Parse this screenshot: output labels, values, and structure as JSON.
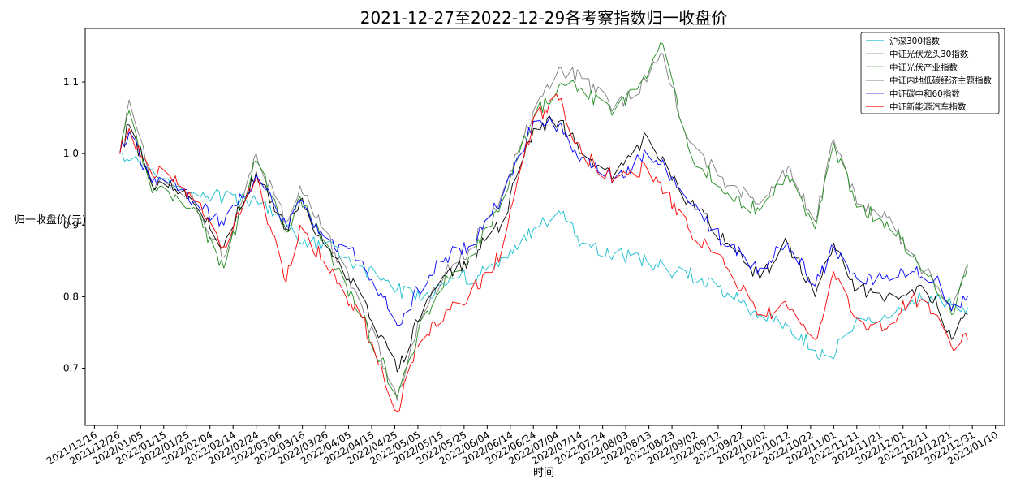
{
  "chart_data": {
    "type": "line",
    "title": "2021-12-27至2022-12-29各考察指数归一收盘价",
    "xlabel": "时间",
    "ylabel": "归一收盘价(元)",
    "x_start": "2021-12-27",
    "x_end": "2022-12-29",
    "xlim": [
      "2021-12-12",
      "2023-01-14"
    ],
    "ylim": [
      0.62,
      1.175
    ],
    "yticks": [
      0.7,
      0.8,
      0.9,
      1.0,
      1.1
    ],
    "ytick_labels": [
      "0.7",
      "0.8",
      "0.9",
      "1.0",
      "1.1"
    ],
    "xtick_labels": [
      "2021/12/16",
      "2021/12/26",
      "2022/01/05",
      "2022/01/15",
      "2022/01/25",
      "2022/02/04",
      "2022/02/14",
      "2022/02/24",
      "2022/03/06",
      "2022/03/16",
      "2022/03/26",
      "2022/04/05",
      "2022/04/15",
      "2022/04/25",
      "2022/05/05",
      "2022/05/15",
      "2022/05/25",
      "2022/06/04",
      "2022/06/14",
      "2022/06/24",
      "2022/07/04",
      "2022/07/14",
      "2022/07/24",
      "2022/08/03",
      "2022/08/13",
      "2022/08/23",
      "2022/09/02",
      "2022/09/12",
      "2022/09/22",
      "2022/10/02",
      "2022/10/12",
      "2022/10/22",
      "2022/11/01",
      "2022/11/11",
      "2022/11/21",
      "2022/12/01",
      "2022/12/11",
      "2022/12/21",
      "2022/12/31",
      "2023/01/10"
    ],
    "grid": false,
    "legend_position": "top-right",
    "series": [
      {
        "name": "沪深300指数",
        "color": "#17becf",
        "x": [
          "2021-12-27",
          "2022-01-05",
          "2022-01-14",
          "2022-01-28",
          "2022-02-10",
          "2022-02-24",
          "2022-03-08",
          "2022-03-15",
          "2022-03-25",
          "2022-04-08",
          "2022-04-20",
          "2022-04-26",
          "2022-05-10",
          "2022-05-20",
          "2022-06-01",
          "2022-06-15",
          "2022-06-24",
          "2022-07-05",
          "2022-07-15",
          "2022-07-29",
          "2022-08-12",
          "2022-08-25",
          "2022-09-05",
          "2022-09-16",
          "2022-09-30",
          "2022-10-12",
          "2022-10-24",
          "2022-10-31",
          "2022-11-11",
          "2022-11-24",
          "2022-12-05",
          "2022-12-15",
          "2022-12-23",
          "2022-12-29"
        ],
        "values": [
          1.0,
          0.985,
          0.965,
          0.945,
          0.94,
          0.935,
          0.91,
          0.875,
          0.875,
          0.845,
          0.825,
          0.81,
          0.8,
          0.825,
          0.83,
          0.86,
          0.895,
          0.92,
          0.875,
          0.86,
          0.85,
          0.835,
          0.825,
          0.805,
          0.775,
          0.76,
          0.725,
          0.715,
          0.77,
          0.77,
          0.795,
          0.795,
          0.79,
          0.785
        ]
      },
      {
        "name": "中证光伏龙头30指数",
        "color": "#808080",
        "x": [
          "2021-12-27",
          "2021-12-31",
          "2022-01-10",
          "2022-01-14",
          "2022-01-28",
          "2022-02-10",
          "2022-02-24",
          "2022-03-09",
          "2022-03-15",
          "2022-03-25",
          "2022-04-11",
          "2022-04-26",
          "2022-05-05",
          "2022-05-17",
          "2022-05-27",
          "2022-06-10",
          "2022-06-24",
          "2022-07-05",
          "2022-07-15",
          "2022-07-29",
          "2022-08-12",
          "2022-08-18",
          "2022-08-31",
          "2022-09-16",
          "2022-09-30",
          "2022-10-12",
          "2022-10-24",
          "2022-11-01",
          "2022-11-11",
          "2022-11-24",
          "2022-12-05",
          "2022-12-15",
          "2022-12-22",
          "2022-12-29"
        ],
        "values": [
          1.0,
          1.075,
          0.955,
          0.965,
          0.935,
          0.855,
          1.0,
          0.905,
          0.955,
          0.895,
          0.785,
          0.655,
          0.765,
          0.835,
          0.865,
          0.94,
          1.06,
          1.12,
          1.105,
          1.065,
          1.1,
          1.14,
          1.015,
          0.955,
          0.93,
          0.98,
          0.905,
          1.02,
          0.93,
          0.91,
          0.86,
          0.815,
          0.78,
          0.845
        ]
      },
      {
        "name": "中证光伏产业指数",
        "color": "#228b22",
        "x": [
          "2021-12-27",
          "2021-12-31",
          "2022-01-10",
          "2022-01-14",
          "2022-01-28",
          "2022-02-10",
          "2022-02-24",
          "2022-03-09",
          "2022-03-15",
          "2022-03-25",
          "2022-04-11",
          "2022-04-26",
          "2022-05-05",
          "2022-05-17",
          "2022-05-27",
          "2022-06-10",
          "2022-06-24",
          "2022-07-05",
          "2022-07-15",
          "2022-07-29",
          "2022-08-12",
          "2022-08-18",
          "2022-08-31",
          "2022-09-16",
          "2022-09-30",
          "2022-10-12",
          "2022-10-24",
          "2022-11-01",
          "2022-11-11",
          "2022-11-24",
          "2022-12-05",
          "2022-12-15",
          "2022-12-22",
          "2022-12-29"
        ],
        "values": [
          1.0,
          1.06,
          0.945,
          0.955,
          0.925,
          0.84,
          0.99,
          0.89,
          0.94,
          0.88,
          0.77,
          0.66,
          0.75,
          0.83,
          0.855,
          0.93,
          1.05,
          1.095,
          1.09,
          1.06,
          1.105,
          1.155,
          1.0,
          0.945,
          0.92,
          0.97,
          0.895,
          1.015,
          0.925,
          0.905,
          0.855,
          0.81,
          0.775,
          0.845
        ]
      },
      {
        "name": "中证内地低碳经济主题指数",
        "color": "#000000",
        "x": [
          "2021-12-27",
          "2021-12-31",
          "2022-01-10",
          "2022-01-14",
          "2022-01-28",
          "2022-02-10",
          "2022-02-24",
          "2022-03-09",
          "2022-03-15",
          "2022-03-25",
          "2022-04-11",
          "2022-04-26",
          "2022-05-05",
          "2022-05-17",
          "2022-05-27",
          "2022-06-10",
          "2022-06-24",
          "2022-07-05",
          "2022-07-15",
          "2022-07-29",
          "2022-08-12",
          "2022-08-18",
          "2022-08-31",
          "2022-09-16",
          "2022-09-30",
          "2022-10-12",
          "2022-10-24",
          "2022-11-01",
          "2022-11-11",
          "2022-11-24",
          "2022-12-05",
          "2022-12-15",
          "2022-12-22",
          "2022-12-29"
        ],
        "values": [
          1.0,
          1.04,
          0.955,
          0.96,
          0.93,
          0.87,
          0.975,
          0.895,
          0.935,
          0.875,
          0.8,
          0.695,
          0.765,
          0.83,
          0.85,
          0.9,
          1.035,
          1.045,
          1.0,
          0.97,
          1.025,
          0.99,
          0.93,
          0.875,
          0.825,
          0.875,
          0.8,
          0.875,
          0.81,
          0.8,
          0.81,
          0.8,
          0.74,
          0.775
        ]
      },
      {
        "name": "中证碳中和60指数",
        "color": "#0000ff",
        "x": [
          "2021-12-27",
          "2021-12-31",
          "2022-01-10",
          "2022-01-14",
          "2022-01-28",
          "2022-02-10",
          "2022-02-24",
          "2022-03-09",
          "2022-03-15",
          "2022-03-25",
          "2022-04-11",
          "2022-04-26",
          "2022-05-05",
          "2022-05-17",
          "2022-05-27",
          "2022-06-10",
          "2022-06-24",
          "2022-07-05",
          "2022-07-15",
          "2022-07-29",
          "2022-08-12",
          "2022-08-18",
          "2022-08-31",
          "2022-09-16",
          "2022-09-30",
          "2022-10-12",
          "2022-10-24",
          "2022-11-01",
          "2022-11-11",
          "2022-11-24",
          "2022-12-05",
          "2022-12-15",
          "2022-12-22",
          "2022-12-29"
        ],
        "values": [
          1.0,
          1.03,
          0.96,
          0.965,
          0.935,
          0.9,
          0.97,
          0.9,
          0.935,
          0.885,
          0.85,
          0.76,
          0.81,
          0.855,
          0.87,
          0.935,
          1.045,
          1.04,
          0.995,
          0.965,
          1.0,
          0.985,
          0.93,
          0.87,
          0.84,
          0.875,
          0.815,
          0.87,
          0.825,
          0.83,
          0.835,
          0.825,
          0.78,
          0.8
        ]
      },
      {
        "name": "中证新能源汽车指数",
        "color": "#ff0000",
        "x": [
          "2021-12-27",
          "2021-12-31",
          "2022-01-10",
          "2022-01-14",
          "2022-01-28",
          "2022-02-10",
          "2022-02-24",
          "2022-03-09",
          "2022-03-15",
          "2022-03-25",
          "2022-04-11",
          "2022-04-26",
          "2022-05-05",
          "2022-05-17",
          "2022-05-27",
          "2022-06-10",
          "2022-06-24",
          "2022-07-05",
          "2022-07-15",
          "2022-07-29",
          "2022-08-12",
          "2022-08-18",
          "2022-08-31",
          "2022-09-16",
          "2022-09-30",
          "2022-10-12",
          "2022-10-24",
          "2022-11-01",
          "2022-11-11",
          "2022-11-24",
          "2022-12-05",
          "2022-12-15",
          "2022-12-22",
          "2022-12-29"
        ],
        "values": [
          1.0,
          1.035,
          0.97,
          0.98,
          0.935,
          0.87,
          0.965,
          0.82,
          0.9,
          0.85,
          0.77,
          0.64,
          0.73,
          0.78,
          0.8,
          0.86,
          1.05,
          1.075,
          1.0,
          0.965,
          0.98,
          0.96,
          0.89,
          0.84,
          0.775,
          0.785,
          0.74,
          0.835,
          0.77,
          0.755,
          0.8,
          0.775,
          0.73,
          0.74
        ]
      }
    ]
  }
}
